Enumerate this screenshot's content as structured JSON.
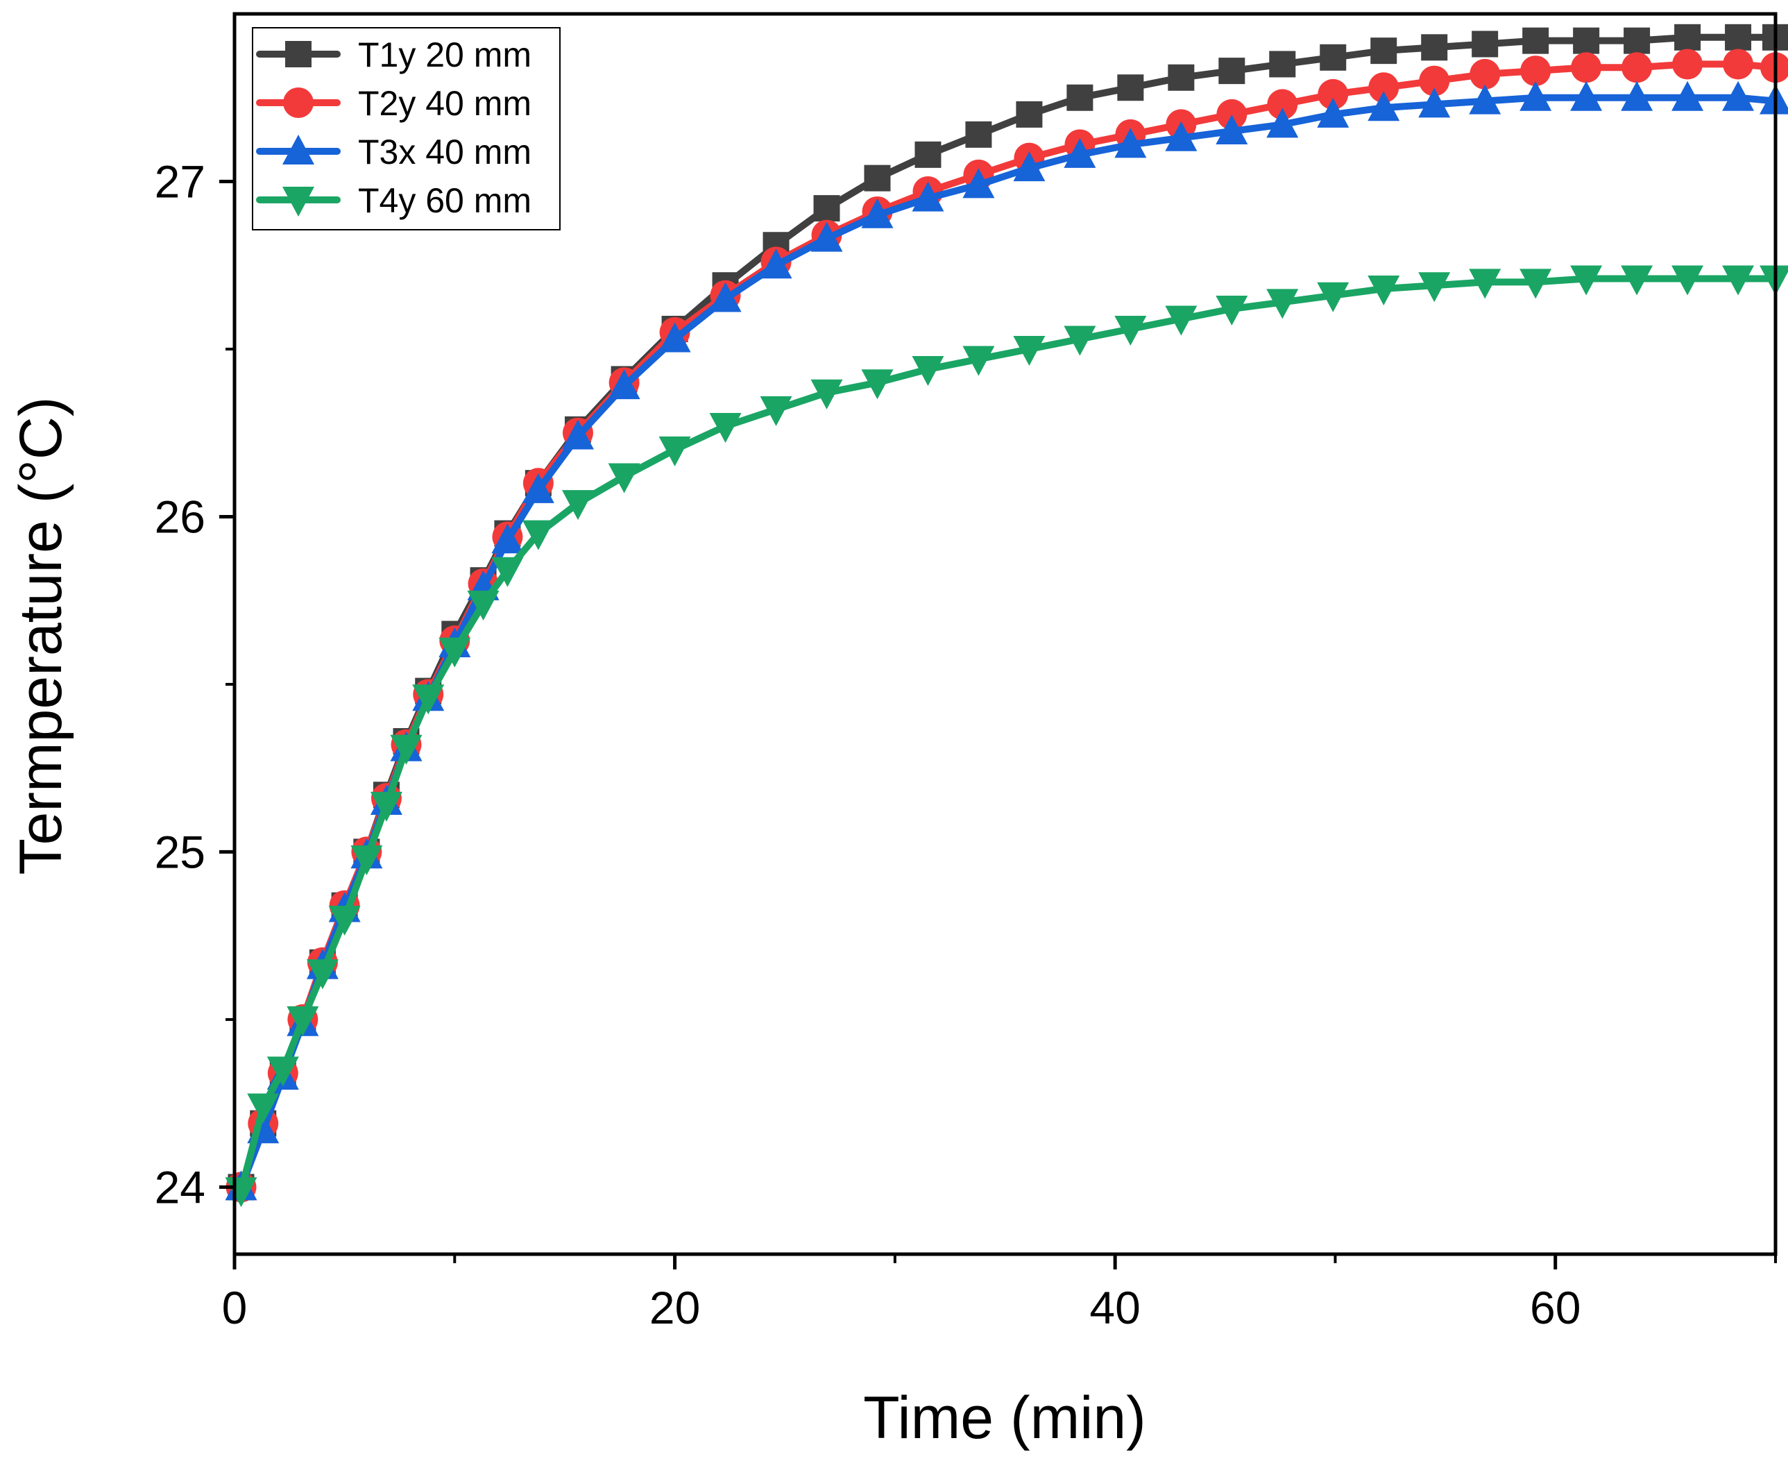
{
  "chart_data": {
    "type": "line",
    "title": "",
    "xlabel": "Time (min)",
    "ylabel": "Termperature (°C)",
    "xlim": [
      0,
      70
    ],
    "ylim": [
      23.8,
      27.5
    ],
    "xticks": [
      0,
      20,
      40,
      60
    ],
    "xticks_minor": [
      10,
      30,
      50,
      70
    ],
    "yticks": [
      24,
      25,
      26,
      27
    ],
    "yticks_minor": [
      24.5,
      25.5,
      26.5
    ],
    "grid": false,
    "legend": "top-left",
    "x": [
      0.3,
      1.3,
      2.2,
      3.1,
      4.0,
      5.0,
      6.0,
      6.9,
      7.8,
      8.8,
      10.0,
      11.3,
      12.4,
      13.8,
      15.6,
      17.7,
      20.0,
      22.3,
      24.6,
      26.9,
      29.2,
      31.5,
      33.8,
      36.1,
      38.4,
      40.7,
      43.0,
      45.3,
      47.6,
      49.9,
      52.2,
      54.5,
      56.8,
      59.1,
      61.4,
      63.7,
      66.0,
      68.3,
      70.0
    ],
    "series": [
      {
        "name": "T1y 20 mm",
        "color": "#404040",
        "marker": "square",
        "values": [
          24.0,
          24.19,
          24.34,
          24.5,
          24.67,
          24.84,
          25.0,
          25.17,
          25.33,
          25.48,
          25.65,
          25.81,
          25.95,
          26.1,
          26.26,
          26.41,
          26.56,
          26.69,
          26.81,
          26.92,
          27.01,
          27.08,
          27.14,
          27.2,
          27.25,
          27.28,
          27.31,
          27.33,
          27.35,
          27.37,
          27.39,
          27.4,
          27.41,
          27.42,
          27.42,
          27.42,
          27.43,
          27.43,
          27.43
        ]
      },
      {
        "name": "T2y 40 mm",
        "color": "#f23a3a",
        "marker": "circle",
        "values": [
          24.0,
          24.19,
          24.34,
          24.5,
          24.67,
          24.84,
          25.0,
          25.16,
          25.32,
          25.47,
          25.63,
          25.8,
          25.94,
          26.1,
          26.25,
          26.4,
          26.55,
          26.66,
          26.76,
          26.84,
          26.91,
          26.97,
          27.02,
          27.07,
          27.11,
          27.14,
          27.17,
          27.2,
          27.23,
          27.26,
          27.28,
          27.3,
          27.32,
          27.33,
          27.34,
          27.34,
          27.35,
          27.35,
          27.34
        ]
      },
      {
        "name": "T3x 40 mm",
        "color": "#1763d8",
        "marker": "triangle-up",
        "values": [
          24.0,
          24.17,
          24.33,
          24.49,
          24.66,
          24.83,
          24.99,
          25.15,
          25.31,
          25.46,
          25.62,
          25.79,
          25.93,
          26.08,
          26.24,
          26.39,
          26.53,
          26.65,
          26.75,
          26.83,
          26.9,
          26.95,
          26.99,
          27.04,
          27.08,
          27.11,
          27.13,
          27.15,
          27.17,
          27.2,
          27.22,
          27.23,
          27.24,
          27.25,
          27.25,
          27.25,
          27.25,
          27.25,
          27.24
        ]
      },
      {
        "name": "T4y 60 mm",
        "color": "#1aa564",
        "marker": "triangle-down",
        "values": [
          23.99,
          24.24,
          24.35,
          24.5,
          24.64,
          24.8,
          24.98,
          25.14,
          25.31,
          25.46,
          25.6,
          25.74,
          25.84,
          25.95,
          26.04,
          26.12,
          26.2,
          26.27,
          26.32,
          26.37,
          26.4,
          26.44,
          26.47,
          26.5,
          26.53,
          26.56,
          26.59,
          26.62,
          26.64,
          26.66,
          26.68,
          26.69,
          26.7,
          26.7,
          26.71,
          26.71,
          26.71,
          26.71,
          26.71
        ]
      }
    ]
  }
}
